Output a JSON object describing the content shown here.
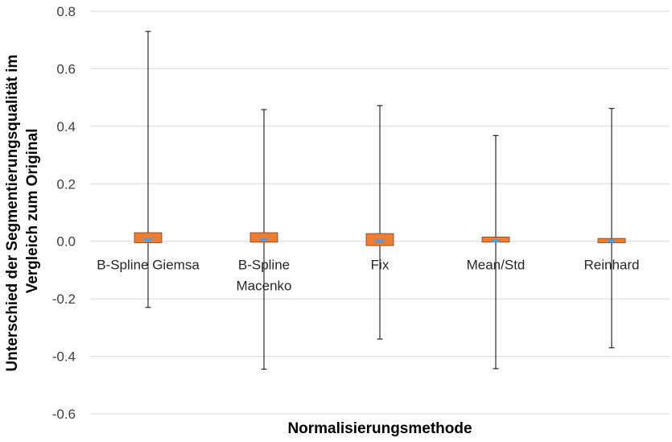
{
  "chart_data": {
    "type": "box",
    "title": "",
    "xlabel": "Normalisierungsmethode",
    "ylabel_lines": [
      "Unterschied der Segmentierungsqualität im",
      "Vergleich zum Original"
    ],
    "ylim": [
      -0.6,
      0.8
    ],
    "ytick_values": [
      0.8,
      0.6,
      0.4,
      0.2,
      0.0,
      -0.2,
      -0.4,
      -0.6
    ],
    "ytick_labels": [
      "0.8",
      "0.6",
      "0.4",
      "0.2",
      "0.0",
      "-0.2",
      "-0.4",
      "-0.6"
    ],
    "grid": true,
    "colors": {
      "box": "#ed7d31",
      "box_border": "#7f3f1a",
      "median": "#5b9bd5",
      "grid": "#d9d9d9",
      "whisker": "#000000"
    },
    "categories": [
      {
        "label_lines": [
          "B-Spline Giemsa"
        ],
        "min": -0.23,
        "q1": -0.005,
        "median": 0.005,
        "q3": 0.03,
        "max": 0.73
      },
      {
        "label_lines": [
          "B-Spline",
          "Macenko"
        ],
        "min": -0.445,
        "q1": -0.003,
        "median": 0.005,
        "q3": 0.03,
        "max": 0.458
      },
      {
        "label_lines": [
          "Fix"
        ],
        "min": -0.34,
        "q1": -0.015,
        "median": 0.0,
        "q3": 0.027,
        "max": 0.472
      },
      {
        "label_lines": [
          "Mean/Std"
        ],
        "min": -0.443,
        "q1": -0.003,
        "median": 0.002,
        "q3": 0.015,
        "max": 0.368
      },
      {
        "label_lines": [
          "Reinhard"
        ],
        "min": -0.37,
        "q1": -0.005,
        "median": 0.002,
        "q3": 0.01,
        "max": 0.462
      }
    ]
  }
}
